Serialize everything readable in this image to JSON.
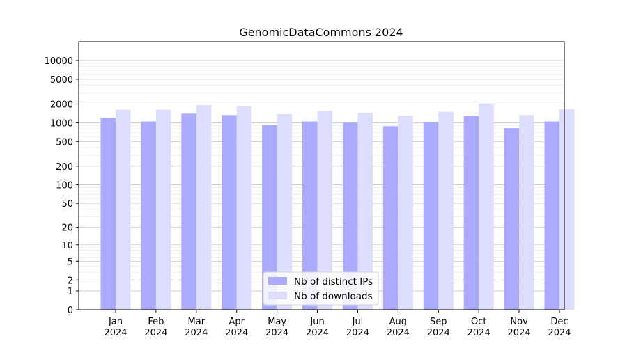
{
  "chart_data": {
    "type": "bar",
    "title": "GenomicDataCommons 2024",
    "xlabel": "",
    "ylabel": "",
    "yscale": "symlog",
    "ylim": [
      0,
      20000
    ],
    "yticks": [
      0,
      1,
      2,
      5,
      10,
      20,
      50,
      100,
      200,
      500,
      1000,
      2000,
      5000,
      10000
    ],
    "ytick_labels": [
      "0",
      "1",
      "2",
      "5",
      "10",
      "20",
      "50",
      "100",
      "200",
      "500",
      "1000",
      "2000",
      "5000",
      "10000"
    ],
    "categories": [
      [
        "Jan",
        "2024"
      ],
      [
        "Feb",
        "2024"
      ],
      [
        "Mar",
        "2024"
      ],
      [
        "Apr",
        "2024"
      ],
      [
        "May",
        "2024"
      ],
      [
        "Jun",
        "2024"
      ],
      [
        "Jul",
        "2024"
      ],
      [
        "Aug",
        "2024"
      ],
      [
        "Sep",
        "2024"
      ],
      [
        "Oct",
        "2024"
      ],
      [
        "Nov",
        "2024"
      ],
      [
        "Dec",
        "2024"
      ]
    ],
    "series": [
      {
        "name": "Nb of distinct IPs",
        "color": "#aaaaff",
        "values": [
          1200,
          1050,
          1400,
          1330,
          920,
          1050,
          1000,
          880,
          1020,
          1300,
          820,
          1050
        ]
      },
      {
        "name": "Nb of downloads",
        "color": "#ddddff",
        "values": [
          1620,
          1620,
          1920,
          1870,
          1380,
          1550,
          1440,
          1300,
          1500,
          2050,
          1330,
          1650
        ]
      }
    ],
    "grid": true,
    "legend": "bottom-center"
  }
}
